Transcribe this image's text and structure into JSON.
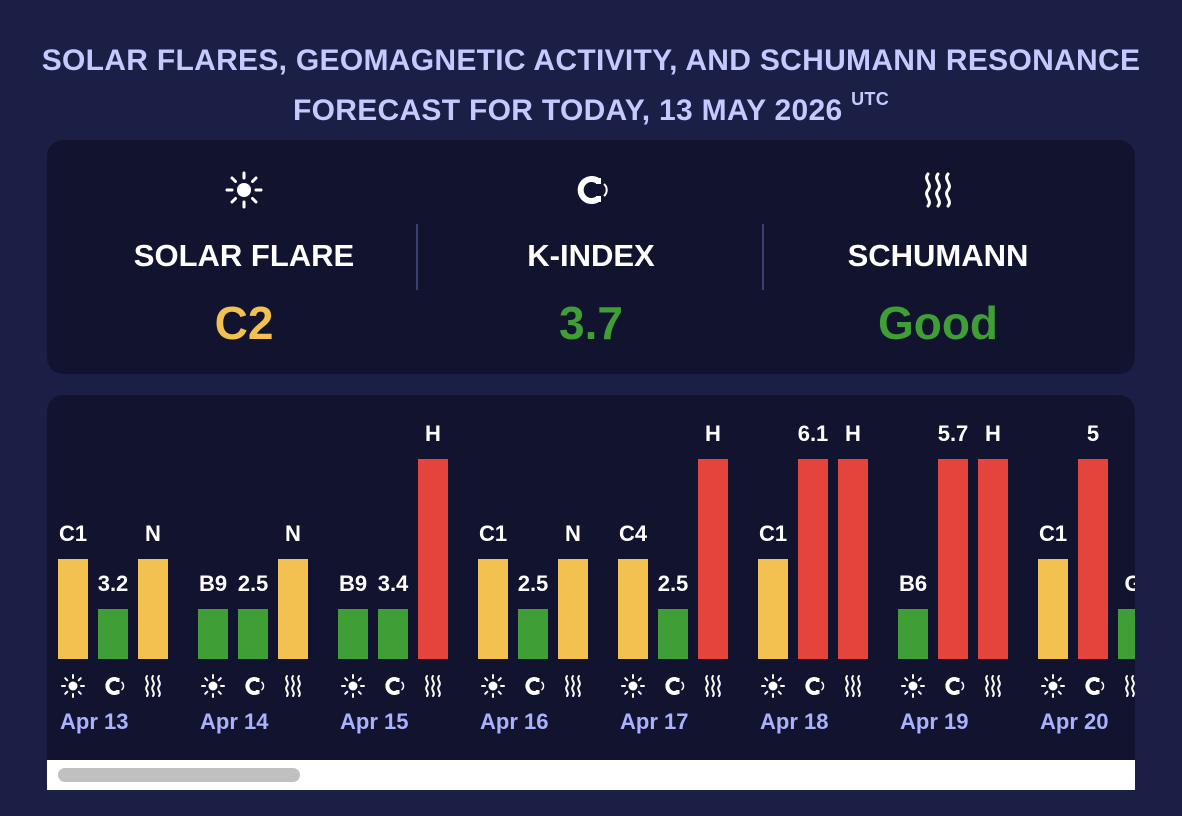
{
  "title": {
    "main": "SOLAR FLARES, GEOMAGNETIC ACTIVITY, AND SCHUMANN RESONANCE FORECAST FOR TODAY, 13 MAY 2026",
    "tz": "UTC"
  },
  "summary": [
    {
      "label": "SOLAR FLARE",
      "value": "C2",
      "icon": "sun-icon",
      "color": "#f2c150"
    },
    {
      "label": "K-INDEX",
      "value": "3.7",
      "icon": "magnet-icon",
      "color": "#3f9e35"
    },
    {
      "label": "SCHUMANN",
      "value": "Good",
      "icon": "wave-icon",
      "color": "#3f9e35"
    }
  ],
  "colors": {
    "good": "#3f9e35",
    "moderate": "#f2c150",
    "high": "#e5443c",
    "label": "#ffffff",
    "date": "#aab2ff"
  },
  "chart_data": {
    "type": "bar",
    "categories": [
      "Apr 13",
      "Apr 14",
      "Apr 15",
      "Apr 16",
      "Apr 17",
      "Apr 18",
      "Apr 19",
      "Apr 20"
    ],
    "series": [
      {
        "icon": "sun-icon",
        "labels": [
          "C1",
          "B9",
          "B9",
          "C1",
          "C4",
          "C1",
          "B6",
          "C1"
        ],
        "levels": [
          2,
          1,
          1,
          2,
          2,
          2,
          1,
          2
        ],
        "colors": [
          "moderate",
          "good",
          "good",
          "moderate",
          "moderate",
          "moderate",
          "good",
          "moderate"
        ]
      },
      {
        "icon": "magnet-icon",
        "labels": [
          "3.2",
          "2.5",
          "3.4",
          "2.5",
          "2.5",
          "6.1",
          "5.7",
          "5"
        ],
        "levels": [
          1,
          1,
          1,
          1,
          1,
          4,
          4,
          4
        ],
        "colors": [
          "good",
          "good",
          "good",
          "good",
          "good",
          "high",
          "high",
          "high"
        ]
      },
      {
        "icon": "wave-icon",
        "labels": [
          "N",
          "N",
          "H",
          "N",
          "H",
          "H",
          "H",
          "G"
        ],
        "levels": [
          2,
          2,
          4,
          2,
          4,
          4,
          4,
          1
        ],
        "colors": [
          "moderate",
          "moderate",
          "high",
          "moderate",
          "high",
          "high",
          "high",
          "good"
        ]
      }
    ]
  }
}
